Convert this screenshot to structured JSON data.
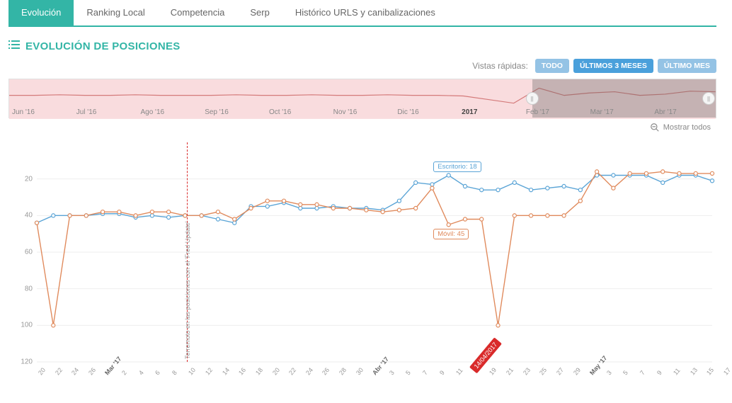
{
  "tabs": [
    {
      "label": "Evolución",
      "active": true
    },
    {
      "label": "Ranking Local",
      "active": false
    },
    {
      "label": "Competencia",
      "active": false
    },
    {
      "label": "Serp",
      "active": false
    },
    {
      "label": "Histórico URLS y canibalizaciones",
      "active": false
    }
  ],
  "title": "EVOLUCIÓN DE POSICIONES",
  "quick_views": {
    "label": "Vistas rápidas:",
    "buttons": [
      {
        "label": "TODO",
        "light": true
      },
      {
        "label": "ÚLTIMOS 3 MESES",
        "light": false
      },
      {
        "label": "ÚLTIMO MES",
        "light": true
      }
    ]
  },
  "overview": {
    "labels": [
      "Jun '16",
      "Jul '16",
      "Ago '16",
      "Sep '16",
      "Oct '16",
      "Nov '16",
      "Dic '16",
      "2017",
      "Feb '17",
      "Mar '17",
      "Abr '17"
    ],
    "bold_index": 7,
    "line_color": "#d47a7a",
    "band_color": "#f9dcde",
    "mask_start_pct": 74,
    "handle_left_pct": 74,
    "handle_right_pct": 99,
    "line": [
      42,
      42,
      41,
      42,
      42,
      41,
      42,
      42,
      42,
      41,
      42,
      42,
      41,
      42,
      42,
      41,
      42,
      42,
      43,
      49,
      55,
      30,
      42,
      38,
      36,
      42,
      40,
      35,
      36
    ],
    "ymin": 20,
    "ymax": 60
  },
  "show_all_label": "Mostrar todos",
  "chart": {
    "y": {
      "min": 0,
      "max": 120,
      "ticks": [
        20,
        40,
        60,
        80,
        100,
        120
      ],
      "inverted": true
    },
    "grid_color": "#eeeeee",
    "x_labels": [
      "20",
      "22",
      "24",
      "26",
      "Mar '17",
      "2",
      "4",
      "6",
      "8",
      "10",
      "12",
      "14",
      "16",
      "18",
      "20",
      "22",
      "24",
      "26",
      "28",
      "30",
      "Abr '17",
      "3",
      "5",
      "7",
      "9",
      "11",
      "14/04/2017",
      "19",
      "21",
      "23",
      "25",
      "27",
      "29",
      "May '17",
      "3",
      "5",
      "7",
      "9",
      "11",
      "13",
      "15",
      "17"
    ],
    "x_month_indices": [
      4,
      20,
      33
    ],
    "x_badge_index": 26,
    "annotation": {
      "index": 9,
      "text": "Terremoto en las posiciones con el 'Fred Update'",
      "color": "#d92a2a"
    },
    "tooltips": {
      "escritorio": {
        "text": "Escritorio: 18",
        "color": "#5aa4d6",
        "index": 25,
        "value": 18
      },
      "movil": {
        "text": "Móvil: 45",
        "color": "#e08a5c",
        "index": 25,
        "value": 45
      }
    },
    "series": [
      {
        "name": "escritorio",
        "color": "#5aa4d6",
        "values": [
          44,
          40,
          40,
          40,
          39,
          39,
          41,
          40,
          41,
          40,
          40,
          42,
          44,
          35,
          35,
          33,
          36,
          36,
          35,
          36,
          36,
          37,
          32,
          22,
          23,
          18,
          24,
          26,
          26,
          22,
          26,
          25,
          24,
          26,
          18,
          18,
          18,
          18,
          22,
          18,
          18,
          21
        ]
      },
      {
        "name": "movil",
        "color": "#e08a5c",
        "values": [
          44,
          100,
          40,
          40,
          38,
          38,
          40,
          38,
          38,
          40,
          40,
          38,
          42,
          36,
          32,
          32,
          34,
          34,
          36,
          36,
          37,
          38,
          37,
          36,
          25,
          45,
          42,
          42,
          100,
          40,
          40,
          40,
          40,
          32,
          16,
          25,
          17,
          17,
          16,
          17,
          17,
          17
        ]
      }
    ]
  },
  "colors": {
    "primary": "#33b5a6",
    "badge": "#d92a2a"
  }
}
